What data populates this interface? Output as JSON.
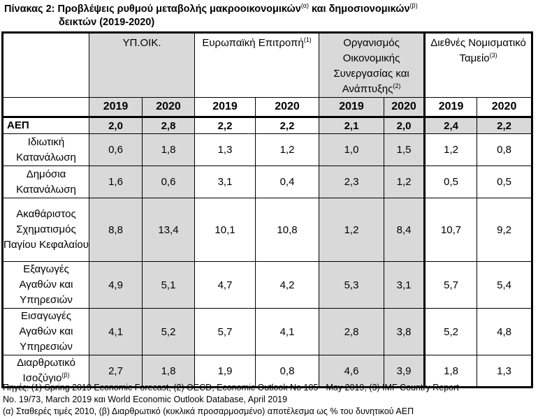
{
  "title": {
    "line1": "Πίνακας 2: Προβλέψεις ρυθμού μεταβολής μακροοικονομικών",
    "sup_a": "(α)",
    "mid": " και δημοσιονομικών",
    "sup_b": "(β)",
    "line2": "δεικτών (2019-2020)"
  },
  "table": {
    "orgs": [
      {
        "name": "ΥΠ.ΟΙΚ.",
        "sup": ""
      },
      {
        "name": "Ευρωπαϊκή Επιτροπή",
        "sup": "(1)"
      },
      {
        "name": "Οργανισμός Οικονομικής Συνεργασίας και Ανάπτυξης",
        "sup": "(2)"
      },
      {
        "name": "Διεθνές Νομισματικό Ταμείο",
        "sup": "(3)"
      }
    ],
    "years": [
      "2019",
      "2020",
      "2019",
      "2020",
      "2019",
      "2020",
      "2019",
      "2020"
    ],
    "rows": [
      {
        "label": "ΑΕΠ",
        "values": [
          "2,0",
          "2,8",
          "2,2",
          "2,2",
          "2,1",
          "2,0",
          "2,4",
          "2,2"
        ]
      },
      {
        "label": "Ιδιωτική Κατανάλωση",
        "values": [
          "0,6",
          "1,8",
          "1,3",
          "1,2",
          "1,0",
          "1,5",
          "1,2",
          "0,8"
        ]
      },
      {
        "label": "Δημόσια Κατανάλωση",
        "values": [
          "1,6",
          "0,6",
          "3,1",
          "0,4",
          "2,3",
          "1,2",
          "0,5",
          "0,5"
        ]
      },
      {
        "label": "Ακαθάριστος Σχηματισμός Παγίου Κεφαλαίου",
        "values": [
          "8,8",
          "13,4",
          "10,1",
          "10,8",
          "1,2",
          "8,4",
          "10,7",
          "9,2"
        ]
      },
      {
        "label": "Εξαγωγές Αγαθών και Υπηρεσιών",
        "values": [
          "4,9",
          "5,1",
          "4,7",
          "4,2",
          "5,3",
          "3,1",
          "5,7",
          "5,4"
        ]
      },
      {
        "label": "Εισαγωγές Αγαθών και Υπηρεσιών",
        "values": [
          "4,1",
          "5,2",
          "5,7",
          "4,1",
          "2,8",
          "3,8",
          "5,2",
          "4,8"
        ]
      },
      {
        "label": "Διαρθρωτικό Ισοζύγιο",
        "label_sup": "(β)",
        "values": [
          "2,7",
          "1,8",
          "1,9",
          "0,8",
          "4,6",
          "3,9",
          "1,8",
          "1,3"
        ]
      }
    ]
  },
  "notes": {
    "line1": "Πηγές: (1) Spring 2019 Economic Forecast, (2) OECD, Economic Outlook No 105 - May 2019, (3) IMF Country Report",
    "line2": "No. 19/73, March 2019 και World Economic Outlook Database, April 2019",
    "line3": "(α) Σταθερές τιμές 2010, (β) Διαρθρωτικό (κυκλικά προσαρμοσμένο) αποτέλεσμα ως % του δυνητικού ΑΕΠ"
  }
}
